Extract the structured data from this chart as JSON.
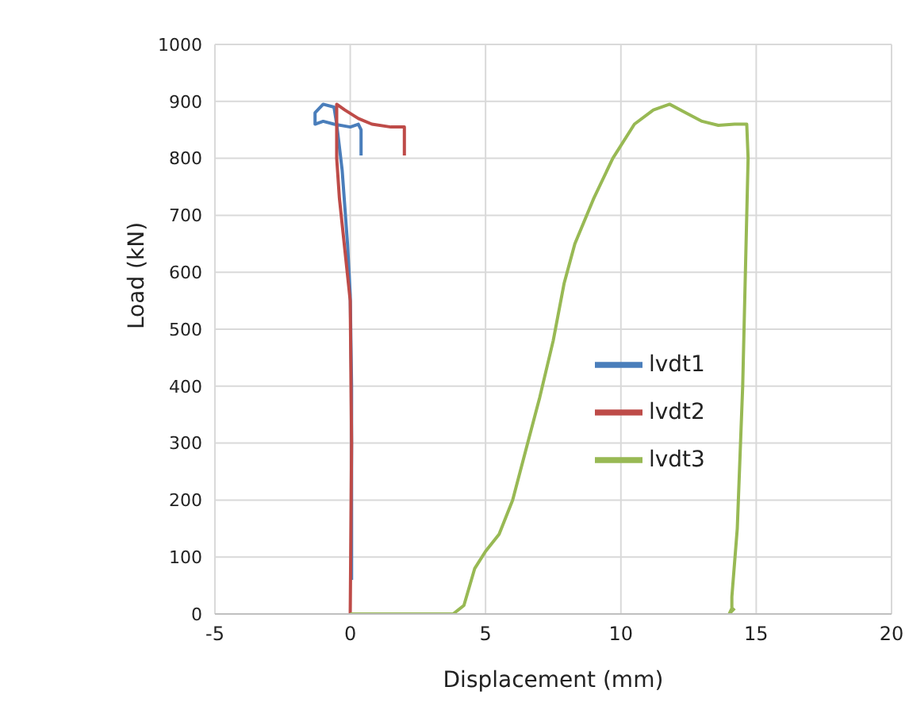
{
  "chart_data": {
    "type": "line",
    "xlabel": "Displacement (mm)",
    "ylabel": "Load (kN)",
    "xlim": [
      -5,
      20
    ],
    "xticks": [
      -5,
      0,
      5,
      10,
      15,
      20
    ],
    "ylim": [
      0,
      1000
    ],
    "yticks": [
      0,
      100,
      200,
      300,
      400,
      500,
      600,
      700,
      800,
      900,
      1000
    ],
    "grid": true,
    "legend": "right",
    "series": [
      {
        "name": "lvdt1",
        "color": "#4a7ebb",
        "x": [
          0.05,
          0.05,
          0.0,
          -0.1,
          -0.3,
          -0.5,
          -0.6,
          -1.0,
          -1.3,
          -1.3,
          -1.0,
          -0.6,
          0,
          0.3,
          0.4,
          0.4
        ],
        "values": [
          60,
          400,
          560,
          650,
          780,
          860,
          890,
          895,
          880,
          860,
          865,
          860,
          855,
          860,
          850,
          805
        ]
      },
      {
        "name": "lvdt2",
        "color": "#be4b48",
        "x": [
          0,
          0.05,
          0.0,
          -0.2,
          -0.4,
          -0.5,
          -0.5,
          -0.2,
          0.3,
          0.8,
          1.5,
          2,
          2
        ],
        "values": [
          0,
          300,
          550,
          640,
          730,
          800,
          895,
          885,
          870,
          860,
          855,
          855,
          805
        ]
      },
      {
        "name": "lvdt3",
        "color": "#98b954",
        "x": [
          0,
          1,
          2,
          3,
          3.8,
          4.2,
          4.6,
          5,
          5.5,
          6,
          6.5,
          7,
          7.5,
          7.9,
          8.3,
          9,
          9.7,
          10.5,
          11.2,
          11.8,
          12.4,
          13,
          13.6,
          14.2,
          14.65,
          14.7,
          14.5,
          14.3,
          14.1,
          14.1,
          14.0,
          14.2
        ],
        "values": [
          0,
          0,
          0,
          0,
          0,
          15,
          80,
          110,
          140,
          200,
          290,
          380,
          480,
          580,
          650,
          730,
          800,
          860,
          885,
          895,
          880,
          865,
          858,
          860,
          860,
          800,
          400,
          150,
          30,
          10,
          0,
          10
        ]
      }
    ]
  }
}
